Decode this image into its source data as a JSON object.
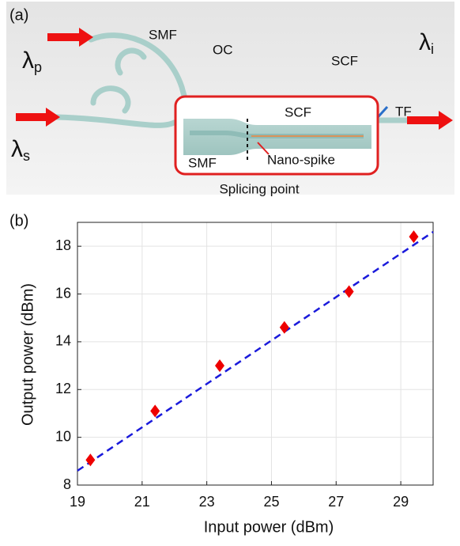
{
  "diagram": {
    "panel_label": "(a)",
    "pump": {
      "symbol": "λ",
      "sub": "p"
    },
    "signal": {
      "symbol": "λ",
      "sub": "s"
    },
    "idler": {
      "symbol": "λ",
      "sub": "i"
    },
    "smf_top": "SMF",
    "oc": "OC",
    "scf_top": "SCF",
    "tf": "TF",
    "inset_scf": "SCF",
    "inset_smf": "SMF",
    "nano_spike": "Nano-spike",
    "caption": "Splicing point"
  },
  "chart_data": {
    "type": "scatter",
    "panel_label": "(b)",
    "xlabel": "Input power (dBm)",
    "ylabel": "Output power (dBm)",
    "xlim": [
      19,
      30
    ],
    "xticks": [
      19,
      21,
      23,
      25,
      27,
      29
    ],
    "ylim": [
      8,
      19
    ],
    "yticks": [
      8,
      10,
      12,
      14,
      16,
      18
    ],
    "grid": true,
    "series": [
      {
        "type": "scatter",
        "marker": "diamond",
        "color": "#ee0000",
        "x": [
          19.4,
          21.4,
          23.4,
          25.4,
          27.4,
          29.4
        ],
        "values": [
          9.05,
          11.1,
          13.0,
          14.6,
          16.1,
          18.4
        ]
      },
      {
        "type": "line",
        "dashed": true,
        "color": "#1a1adb",
        "x": [
          19,
          30
        ],
        "values": [
          8.6,
          18.6
        ]
      }
    ]
  }
}
